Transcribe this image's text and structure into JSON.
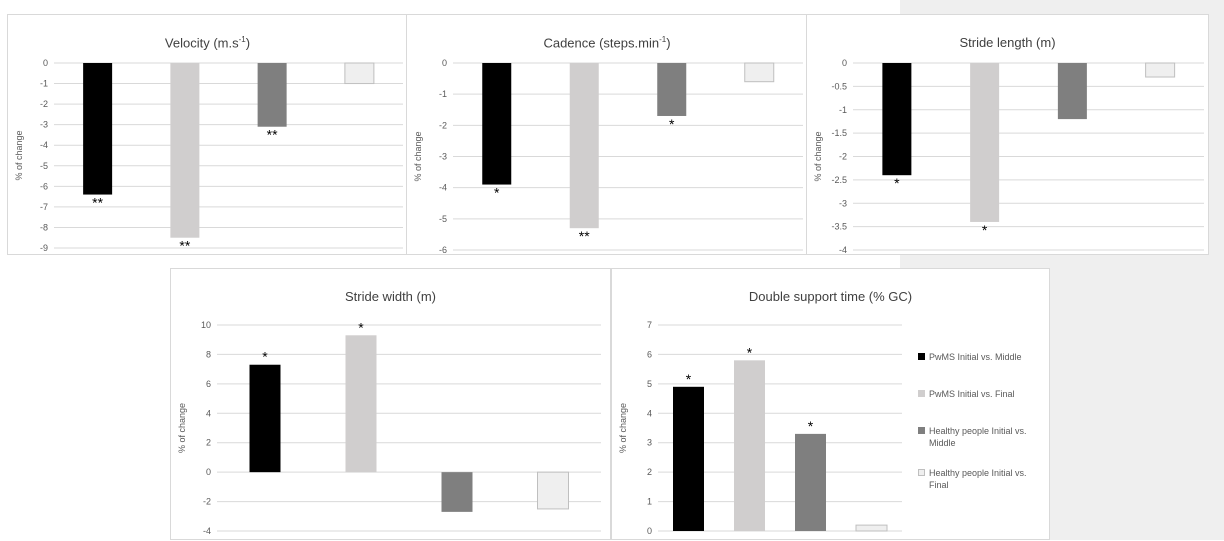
{
  "y_axis_label": "% of change",
  "colors": {
    "pwms_middle": "#000000",
    "pwms_final": "#d0cece",
    "healthy_middle": "#7f7f7f",
    "healthy_final": "#efefef"
  },
  "legend": [
    {
      "label": "PwMS Initial vs. Middle",
      "color_key": "pwms_middle"
    },
    {
      "label": "PwMS Initial vs. Final",
      "color_key": "pwms_final"
    },
    {
      "label": "Healthy people Initial vs. Middle",
      "color_key": "healthy_middle"
    },
    {
      "label": "Healthy people Initial vs. Final",
      "color_key": "healthy_final"
    }
  ],
  "chart_data": [
    {
      "type": "bar",
      "title": "Velocity (m.s",
      "title_sup": "-1",
      "title_end": ")",
      "ylabel": "% of change",
      "categories": [
        "PwMS Initial vs. Middle",
        "PwMS Initial vs. Final",
        "Healthy people Initial vs. Middle",
        "Healthy people Initial vs. Final"
      ],
      "values": [
        -6.4,
        -8.5,
        -3.1,
        -1.0
      ],
      "significance": [
        "**",
        "**",
        "**",
        ""
      ],
      "ylim": [
        -9,
        0
      ],
      "yticks": [
        "0",
        "-1",
        "-2",
        "-3",
        "-4",
        "-5",
        "-6",
        "-7",
        "-8",
        "-9"
      ],
      "grid": true
    },
    {
      "type": "bar",
      "title": "Cadence (steps.min",
      "title_sup": "-1",
      "title_end": ")",
      "ylabel": "% of change",
      "categories": [
        "PwMS Initial vs. Middle",
        "PwMS Initial vs. Final",
        "Healthy people Initial vs. Middle",
        "Healthy people Initial vs. Final"
      ],
      "values": [
        -3.9,
        -5.3,
        -1.7,
        -0.6
      ],
      "significance": [
        "*",
        "**",
        "*",
        ""
      ],
      "ylim": [
        -6,
        0
      ],
      "yticks": [
        "0",
        "-1",
        "-2",
        "-3",
        "-4",
        "-5",
        "-6"
      ],
      "grid": true
    },
    {
      "type": "bar",
      "title": "Stride length (m)",
      "title_sup": "",
      "title_end": "",
      "ylabel": "% of change",
      "categories": [
        "PwMS Initial vs. Middle",
        "PwMS Initial vs. Final",
        "Healthy people Initial vs. Middle",
        "Healthy people Initial vs. Final"
      ],
      "values": [
        -2.4,
        -3.4,
        -1.2,
        -0.3
      ],
      "significance": [
        "*",
        "*",
        "",
        ""
      ],
      "ylim": [
        -4,
        0
      ],
      "yticks": [
        "0",
        "-0.5",
        "-1",
        "-1.5",
        "-2",
        "-2.5",
        "-3",
        "-3.5",
        "-4"
      ],
      "grid": true
    },
    {
      "type": "bar",
      "title": "Stride width (m)",
      "title_sup": "",
      "title_end": "",
      "ylabel": "% of change",
      "categories": [
        "PwMS Initial vs. Middle",
        "PwMS Initial vs. Final",
        "Healthy people Initial vs. Middle",
        "Healthy people Initial vs. Final"
      ],
      "values": [
        7.3,
        9.3,
        -2.7,
        -2.5
      ],
      "significance": [
        "*",
        "*",
        "",
        ""
      ],
      "ylim": [
        -4,
        10
      ],
      "yticks": [
        "10",
        "8",
        "6",
        "4",
        "2",
        "0",
        "-2",
        "-4"
      ],
      "grid": true
    },
    {
      "type": "bar",
      "title": "Double support time (% GC)",
      "title_sup": "",
      "title_end": "",
      "ylabel": "% of change",
      "categories": [
        "PwMS Initial vs. Middle",
        "PwMS Initial vs. Final",
        "Healthy people Initial vs. Middle",
        "Healthy people Initial vs. Final"
      ],
      "values": [
        4.9,
        5.8,
        3.3,
        0.2
      ],
      "significance": [
        "*",
        "*",
        "*",
        ""
      ],
      "ylim": [
        0,
        7
      ],
      "yticks": [
        "7",
        "6",
        "5",
        "4",
        "3",
        "2",
        "1",
        "0"
      ],
      "grid": true,
      "legend_position": "right"
    }
  ]
}
